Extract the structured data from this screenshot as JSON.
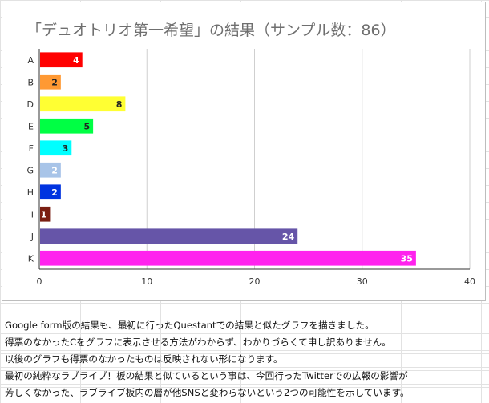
{
  "chart_data": {
    "type": "bar",
    "orientation": "horizontal",
    "title": "「デュオトリオ第一希望」の結果（サンプル数：86）",
    "xlabel": "",
    "ylabel": "",
    "xlim": [
      0,
      40
    ],
    "x_ticks": [
      "0",
      "10",
      "20",
      "30",
      "40"
    ],
    "grid": true,
    "legend": "none",
    "categories": [
      "A",
      "B",
      "D",
      "E",
      "F",
      "G",
      "H",
      "I",
      "J",
      "K"
    ],
    "values": [
      4,
      2,
      8,
      5,
      3,
      2,
      2,
      1,
      24,
      35
    ],
    "colors": [
      "#ff0000",
      "#ff9933",
      "#ffff33",
      "#00ff44",
      "#00ffff",
      "#a8c4e8",
      "#0033e0",
      "#7a1f12",
      "#6655a8",
      "#ff22ee"
    ],
    "label_colors": [
      "#ffffff",
      "#222222",
      "#222222",
      "#222222",
      "#222222",
      "#ffffff",
      "#ffffff",
      "#ffffff",
      "#ffffff",
      "#ffffff"
    ]
  },
  "notes": [
    "Google form版の結果も、最初に行ったQuestantでの結果と似たグラフを描きました。",
    "得票のなかったCをグラフに表示させる方法がわからず、わかりづらくて申し訳ありません。",
    "以後のグラフも得票のなかったものは反映されない形になります。",
    "最初の純粋なラブライブ！板の結果と似ているという事は、今回行ったTwitterでの広報の影響が",
    "芳しくなかった、ラブライブ板内の層が他SNSと変わらないという2つの可能性を示しています。"
  ]
}
